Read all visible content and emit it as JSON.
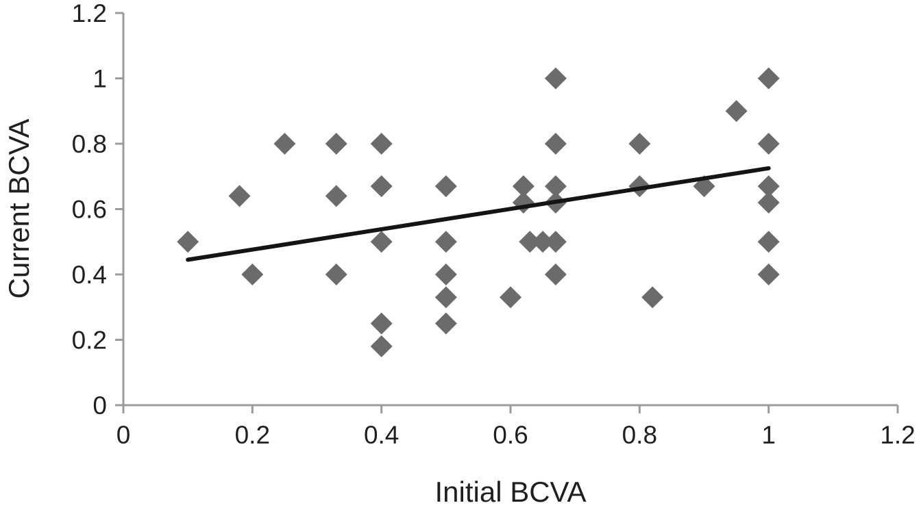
{
  "chart_data": {
    "type": "scatter",
    "title": "",
    "xlabel": "Initial BCVA",
    "ylabel": "Current BCVA",
    "xlim": [
      0,
      1.2
    ],
    "ylim": [
      0,
      1.2
    ],
    "xtick_values": [
      0,
      0.2,
      0.4,
      0.6,
      0.8,
      1,
      1.2
    ],
    "xtick_labels": [
      "0",
      "0.2",
      "0.4",
      "0.6",
      "0.8",
      "1",
      "1.2"
    ],
    "ytick_values": [
      0,
      0.2,
      0.4,
      0.6,
      0.8,
      1,
      1.2
    ],
    "ytick_labels": [
      "0",
      "0.2",
      "0.4",
      "0.6",
      "0.8",
      "1",
      "1.2"
    ],
    "grid": false,
    "legend": "none",
    "marker": "diamond",
    "marker_color": "#6b6b6b",
    "axis_color": "#9b9b9b",
    "points": [
      [
        0.1,
        0.5
      ],
      [
        0.18,
        0.64
      ],
      [
        0.2,
        0.4
      ],
      [
        0.25,
        0.8
      ],
      [
        0.33,
        0.8
      ],
      [
        0.33,
        0.64
      ],
      [
        0.33,
        0.4
      ],
      [
        0.4,
        0.8
      ],
      [
        0.4,
        0.67
      ],
      [
        0.4,
        0.5
      ],
      [
        0.4,
        0.25
      ],
      [
        0.4,
        0.18
      ],
      [
        0.5,
        0.67
      ],
      [
        0.5,
        0.5
      ],
      [
        0.5,
        0.4
      ],
      [
        0.5,
        0.33
      ],
      [
        0.5,
        0.25
      ],
      [
        0.6,
        0.33
      ],
      [
        0.62,
        0.67
      ],
      [
        0.62,
        0.62
      ],
      [
        0.63,
        0.5
      ],
      [
        0.65,
        0.5
      ],
      [
        0.67,
        1.0
      ],
      [
        0.67,
        0.8
      ],
      [
        0.67,
        0.67
      ],
      [
        0.67,
        0.62
      ],
      [
        0.67,
        0.5
      ],
      [
        0.67,
        0.4
      ],
      [
        0.8,
        0.8
      ],
      [
        0.8,
        0.67
      ],
      [
        0.82,
        0.33
      ],
      [
        0.9,
        0.67
      ],
      [
        0.95,
        0.9
      ],
      [
        1.0,
        1.0
      ],
      [
        1.0,
        0.8
      ],
      [
        1.0,
        0.67
      ],
      [
        1.0,
        0.62
      ],
      [
        1.0,
        0.5
      ],
      [
        1.0,
        0.4
      ]
    ],
    "trendline": {
      "x1": 0.1,
      "y1": 0.445,
      "x2": 1.0,
      "y2": 0.725,
      "color": "#141414"
    }
  }
}
